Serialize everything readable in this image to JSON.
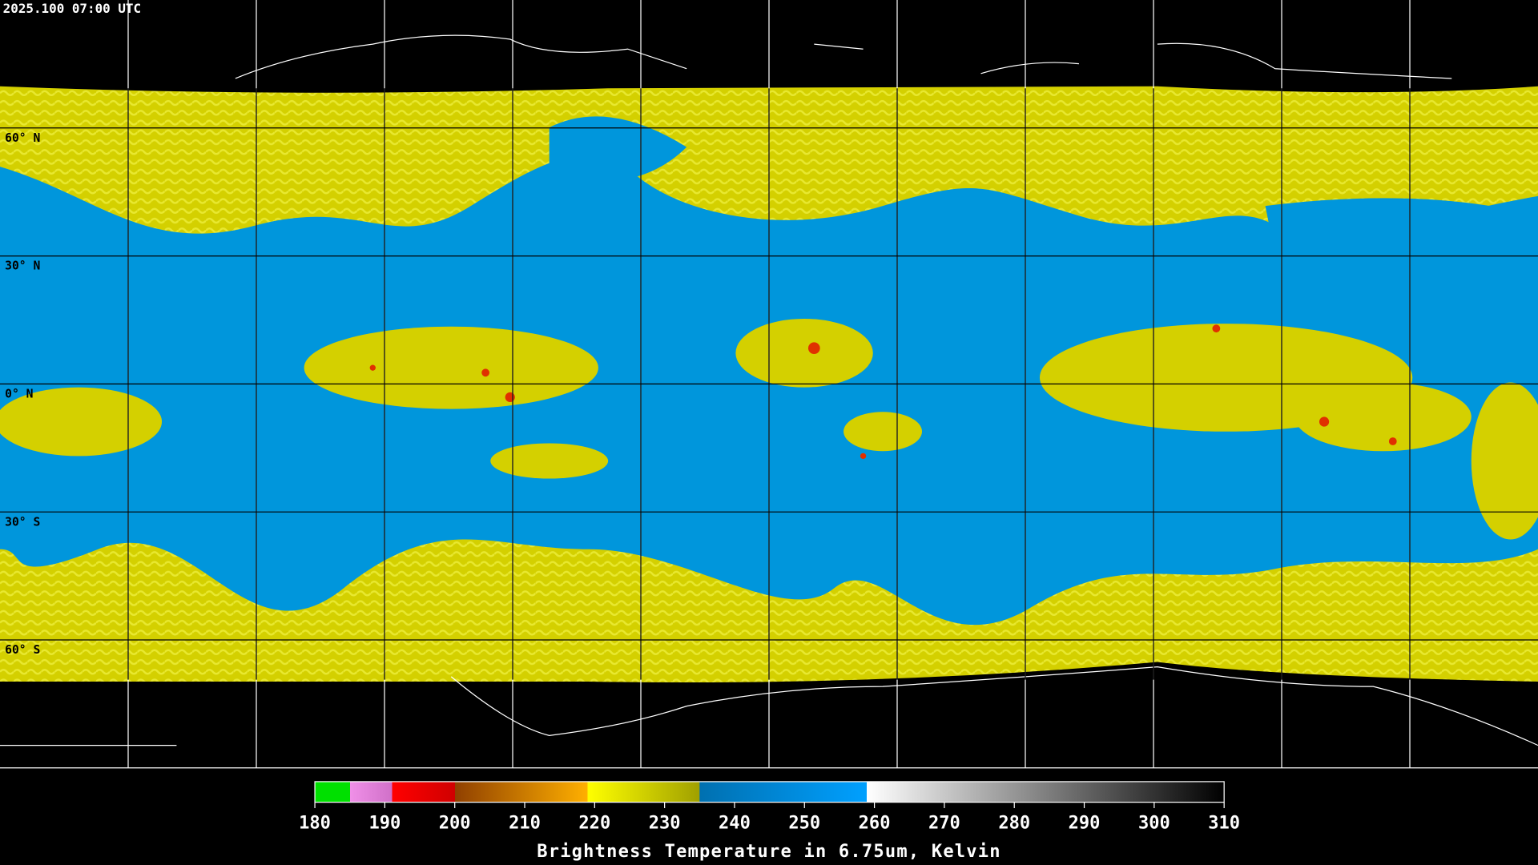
{
  "header": {
    "timestamp": "2025.100 07:00 UTC"
  },
  "map": {
    "lat_labels": [
      "60° N",
      "30° N",
      "0° N",
      "30° S",
      "60° S"
    ]
  },
  "colorbar": {
    "ticks": [
      180,
      190,
      200,
      210,
      220,
      230,
      240,
      250,
      260,
      270,
      280,
      290,
      300,
      310
    ],
    "title": "Brightness Temperature in 6.75um, Kelvin"
  }
}
